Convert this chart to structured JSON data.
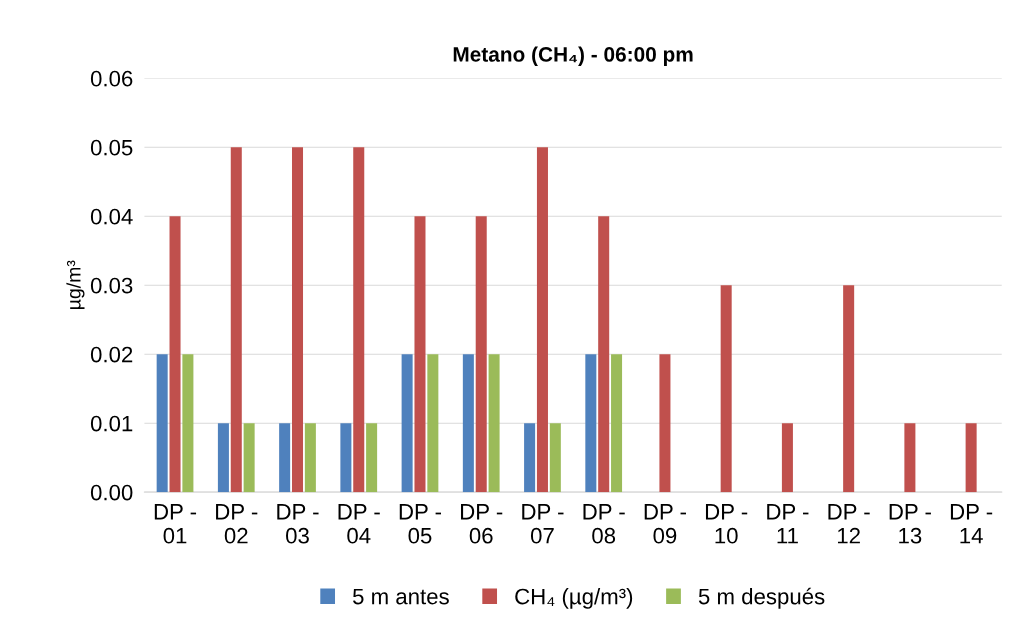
{
  "chart_data": {
    "type": "bar",
    "title": "Metano (CH₄) - 06:00 pm",
    "ylabel": "µg/m³",
    "categories": [
      "DP - 01",
      "DP - 02",
      "DP - 03",
      "DP - 04",
      "DP - 05",
      "DP - 06",
      "DP - 07",
      "DP - 08",
      "DP - 09",
      "DP - 10",
      "DP - 11",
      "DP - 12",
      "DP - 13",
      "DP - 14"
    ],
    "series": [
      {
        "name": "5 m antes",
        "color": "#4f81bd",
        "values": [
          0.02,
          0.01,
          0.01,
          0.01,
          0.02,
          0.02,
          0.01,
          0.02,
          null,
          null,
          null,
          null,
          null,
          null
        ]
      },
      {
        "name": "CH₄ (µg/m³)",
        "color": "#c0504d",
        "values": [
          0.04,
          0.05,
          0.05,
          0.05,
          0.04,
          0.04,
          0.05,
          0.04,
          0.02,
          0.03,
          0.01,
          0.03,
          0.01,
          0.01
        ]
      },
      {
        "name": "5 m después",
        "color": "#9bbb59",
        "values": [
          0.02,
          0.01,
          0.01,
          0.01,
          0.02,
          0.02,
          0.01,
          0.02,
          null,
          null,
          null,
          null,
          null,
          null
        ]
      }
    ],
    "ylim": [
      0,
      0.06
    ],
    "yticks": [
      {
        "value": 0,
        "label": "0.00"
      },
      {
        "value": 0.01,
        "label": "0.01"
      },
      {
        "value": 0.02,
        "label": "0.02"
      },
      {
        "value": 0.03,
        "label": "0.03"
      },
      {
        "value": 0.04,
        "label": "0.04"
      },
      {
        "value": 0.05,
        "label": "0.05"
      },
      {
        "value": 0.06,
        "label": "0.06"
      }
    ],
    "grid": "y",
    "legend": "bottom"
  }
}
